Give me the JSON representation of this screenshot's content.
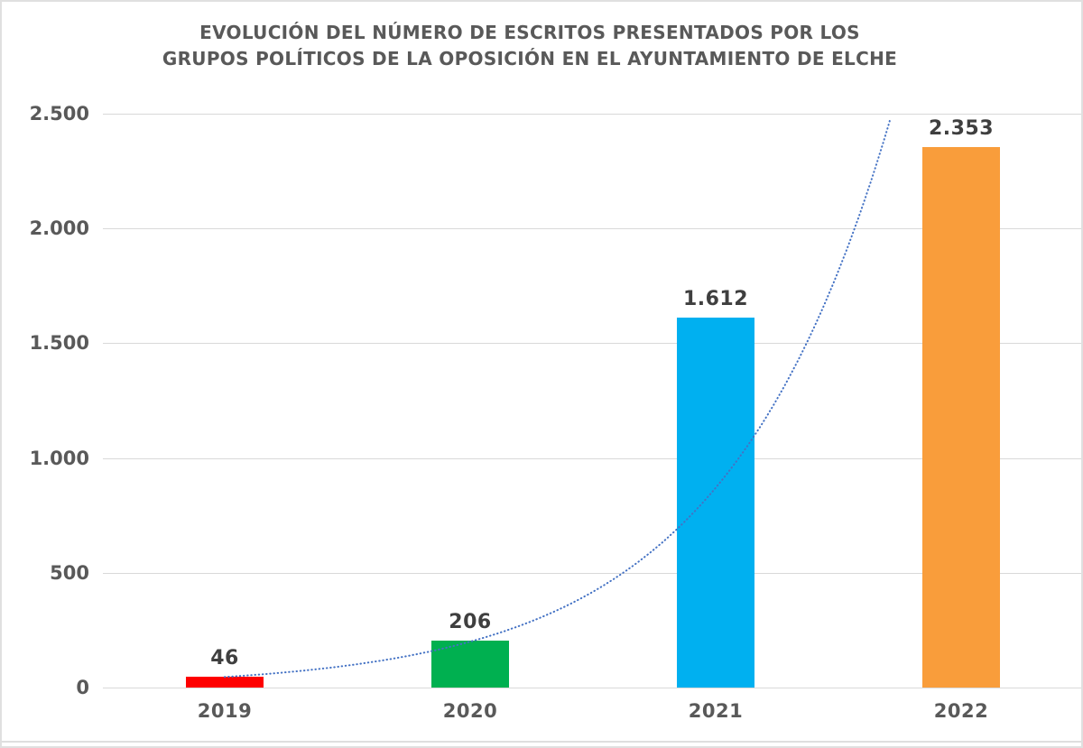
{
  "title": {
    "line1": "EVOLUCIÓN DEL NÚMERO DE ESCRITOS PRESENTADOS POR LOS",
    "line2": "GRUPOS POLÍTICOS DE LA OPOSICIÓN EN EL AYUNTAMIENTO DE ELCHE"
  },
  "chart_data": {
    "type": "bar",
    "title": "EVOLUCIÓN DEL NÚMERO DE ESCRITOS PRESENTADOS POR LOS GRUPOS POLÍTICOS DE LA OPOSICIÓN EN EL AYUNTAMIENTO DE ELCHE",
    "categories": [
      "2019",
      "2020",
      "2021",
      "2022"
    ],
    "values": [
      46,
      206,
      1612,
      2353
    ],
    "value_labels": [
      "46",
      "206",
      "1.612",
      "2.353"
    ],
    "bar_colors": [
      "#FE0000",
      "#00B050",
      "#00B0F0",
      "#F99D3B"
    ],
    "y_ticks": [
      0,
      500,
      1000,
      1500,
      2000,
      2500
    ],
    "y_tick_labels": [
      "0",
      "500",
      "1.000",
      "1.500",
      "2.000",
      "2.500"
    ],
    "ylim": [
      0,
      2500
    ],
    "xlabel": "",
    "ylabel": "",
    "grid": true,
    "legend": "none",
    "trendline": {
      "type": "exponential",
      "style": "dotted",
      "color": "#4472C4",
      "a": 46,
      "b": 4.35
    },
    "colors": {
      "title_text": "#595959",
      "axis_text": "#595959",
      "value_label_text": "#3F3F3F",
      "gridline": "#D9D9D9",
      "background": "#FFFFFF",
      "border": "#E0E0E0"
    }
  }
}
